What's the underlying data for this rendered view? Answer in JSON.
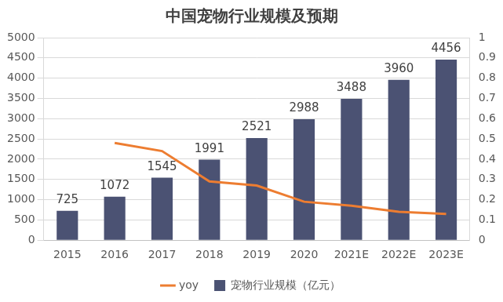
{
  "chart_data": {
    "type": "bar",
    "title": "中国宠物行业规模及预期",
    "categories": [
      "2015",
      "2016",
      "2017",
      "2018",
      "2019",
      "2020",
      "2021E",
      "2022E",
      "2023E"
    ],
    "series": [
      {
        "name": "宠物行业规模（亿元）",
        "type": "bar",
        "color": "#4b5273",
        "data_labels": true,
        "values": [
          725,
          1072,
          1545,
          1991,
          2521,
          2988,
          3488,
          3960,
          4456
        ]
      },
      {
        "name": "yoy",
        "type": "line",
        "color": "#ed7d31",
        "axis": "y2",
        "marker": "none",
        "values": [
          null,
          0.48,
          0.44,
          0.29,
          0.27,
          0.19,
          0.17,
          0.14,
          0.13
        ]
      }
    ],
    "ylim": [
      0,
      5000
    ],
    "yticks": [
      0,
      500,
      1000,
      1500,
      2000,
      2500,
      3000,
      3500,
      4000,
      4500,
      5000
    ],
    "y2lim": [
      0,
      1
    ],
    "y2ticks": [
      0,
      0.1,
      0.2,
      0.3,
      0.4,
      0.5,
      0.6,
      0.7,
      0.8,
      0.9,
      1
    ],
    "grid": true,
    "legend": "bottom"
  }
}
